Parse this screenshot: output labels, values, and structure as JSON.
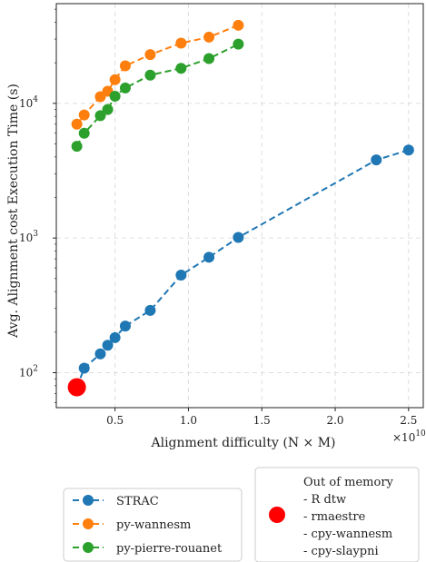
{
  "chart_data": {
    "type": "line",
    "title": "",
    "xlabel": "Alignment difficulty (N × M)",
    "ylabel": "Avg. Alignment cost Execution Time (s)",
    "x_multiplier_label": "×10",
    "x_multiplier_exp": "10",
    "x_multiplier": 10000000000.0,
    "xlim": [
      0.1,
      2.6
    ],
    "ylim": [
      55,
      55000
    ],
    "yscale": "log",
    "grid": true,
    "x_ticks": [
      {
        "value": 0.5,
        "label": "0.5"
      },
      {
        "value": 1.0,
        "label": "1.0"
      },
      {
        "value": 1.5,
        "label": "1.5"
      },
      {
        "value": 2.0,
        "label": "2.0"
      },
      {
        "value": 2.5,
        "label": "2.5"
      }
    ],
    "y_ticks": [
      {
        "value": 100,
        "base": "10",
        "exp": "2"
      },
      {
        "value": 1000,
        "base": "10",
        "exp": "3"
      },
      {
        "value": 10000,
        "base": "10",
        "exp": "4"
      }
    ],
    "series": [
      {
        "name": "STRAC",
        "color": "#1f77b4",
        "x": [
          0.24,
          0.29,
          0.4,
          0.45,
          0.5,
          0.57,
          0.74,
          0.95,
          1.14,
          1.34,
          2.28,
          2.5
        ],
        "y": [
          78,
          108,
          138,
          160,
          182,
          222,
          290,
          530,
          720,
          1010,
          3800,
          4500
        ]
      },
      {
        "name": "py-wannesm",
        "color": "#ff7f0e",
        "x": [
          0.24,
          0.29,
          0.4,
          0.45,
          0.5,
          0.57,
          0.74,
          0.95,
          1.14,
          1.34
        ],
        "y": [
          7000,
          8200,
          11200,
          12300,
          15000,
          19000,
          23000,
          28000,
          31000,
          38000
        ]
      },
      {
        "name": "py-pierre-rouanet",
        "color": "#2ca02c",
        "x": [
          0.24,
          0.29,
          0.4,
          0.45,
          0.5,
          0.57,
          0.74,
          0.95,
          1.14,
          1.34
        ],
        "y": [
          4800,
          6000,
          8100,
          9000,
          11300,
          13000,
          16200,
          18200,
          21500,
          27500
        ]
      }
    ],
    "out_of_memory": {
      "color": "#ff0000",
      "x": 0.24,
      "y": 78,
      "title": "Out of memory",
      "items": [
        "- R dtw",
        "- rmaestre",
        "- cpy-wannesm",
        "- cpy-slaypni"
      ]
    },
    "legend_position": "below"
  }
}
